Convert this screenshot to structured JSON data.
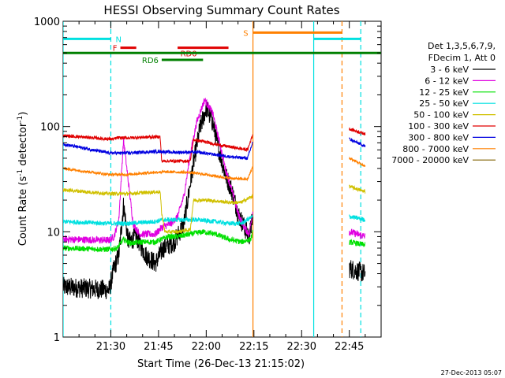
{
  "chart_data": {
    "type": "line",
    "title": "HESSI Observing Summary Count Rates",
    "xlabel": "Start Time (26-Dec-13 21:15:02)",
    "ylabel_main": "Count Rate (s",
    "ylabel_sup": "-1",
    "ylabel_rest": " detector",
    "ylabel_sup2": "-1",
    "ylabel_end": ")",
    "timestamp": "27-Dec-2013 05:07",
    "yscale": "log",
    "ylim": [
      1,
      1000
    ],
    "xlim_minutes": [
      0,
      100
    ],
    "x_tick_labels": [
      {
        "label": "21:30",
        "t": 15
      },
      {
        "label": "21:45",
        "t": 30
      },
      {
        "label": "22:00",
        "t": 45
      },
      {
        "label": "22:15",
        "t": 60
      },
      {
        "label": "22:30",
        "t": 75
      },
      {
        "label": "22:45",
        "t": 90
      }
    ],
    "y_tick_labels": [
      {
        "label": "1",
        "v": 1
      },
      {
        "label": "10",
        "v": 10
      },
      {
        "label": "100",
        "v": 100
      },
      {
        "label": "1000",
        "v": 1000
      }
    ],
    "legend": {
      "header1": "Det 1,3,5,6,7,9,",
      "header2": "FDecim 1, Att 0",
      "placement": "right",
      "entries": [
        {
          "label": "3 - 6 keV",
          "color": "#000000"
        },
        {
          "label": "6 - 12 keV",
          "color": "#e000e0"
        },
        {
          "label": "12 - 25 keV",
          "color": "#00e000"
        },
        {
          "label": "25 - 50 keV",
          "color": "#00e0e0"
        },
        {
          "label": "50 - 100 keV",
          "color": "#d0c000"
        },
        {
          "label": "100 - 300 keV",
          "color": "#e00000"
        },
        {
          "label": "300 - 800 keV",
          "color": "#0000e0"
        },
        {
          "label": "800 - 7000 keV",
          "color": "#ff8000"
        },
        {
          "label": "7000 - 20000 keV",
          "color": "#806000"
        }
      ]
    },
    "vertical_markers": [
      {
        "t": 0,
        "color": "#00e0e0",
        "style": "solid"
      },
      {
        "t": 15.0,
        "color": "#00e0e0",
        "style": "dashed"
      },
      {
        "t": 59.7,
        "color": "#ff8000",
        "style": "solid"
      },
      {
        "t": 78.8,
        "color": "#00e0e0",
        "style": "solid"
      },
      {
        "t": 87.7,
        "color": "#ff8000",
        "style": "dashed"
      },
      {
        "t": 93.6,
        "color": "#00e0e0",
        "style": "dashed"
      }
    ],
    "flag_bars": [
      {
        "label": "N",
        "color": "#00e0e0",
        "y": 680,
        "segments": [
          [
            0,
            15
          ],
          [
            78.8,
            93.6
          ]
        ]
      },
      {
        "label": "F",
        "color": "#e00000",
        "y": 560,
        "segments": [
          [
            18,
            23
          ]
        ]
      },
      {
        "label": "RD0",
        "color": "#e00000",
        "y": 560,
        "segments": [
          [
            36,
            52
          ]
        ]
      },
      {
        "label": "",
        "color": "#008000",
        "y": 500,
        "segments": [
          [
            0,
            100
          ]
        ]
      },
      {
        "label": "RD6",
        "color": "#008000",
        "y": 430,
        "segments": [
          [
            31,
            44
          ]
        ]
      },
      {
        "label": "S",
        "color": "#ff8000",
        "y": 780,
        "segments": [
          [
            59.7,
            87.7
          ]
        ]
      }
    ],
    "series": [
      {
        "name": "3 - 6 keV",
        "color": "#000000",
        "noise": 0.22,
        "segments": [
          {
            "points": [
              [
                0,
                3.0
              ],
              [
                14.5,
                2.8
              ],
              [
                16,
                4.5
              ],
              [
                17.5,
                6
              ],
              [
                19,
                18
              ],
              [
                20.5,
                8
              ],
              [
                23,
                9
              ],
              [
                26,
                6
              ],
              [
                29,
                5
              ],
              [
                31.5,
                7
              ],
              [
                35,
                8
              ],
              [
                38,
                12
              ],
              [
                41,
                45
              ],
              [
                43,
                95
              ],
              [
                45,
                150
              ],
              [
                47,
                110
              ],
              [
                49,
                60
              ],
              [
                51,
                35
              ],
              [
                53,
                25
              ],
              [
                55,
                15
              ],
              [
                57,
                11
              ],
              [
                58.5,
                9
              ],
              [
                59.7,
                14
              ]
            ]
          },
          {
            "points": [
              [
                90,
                4.5
              ],
              [
                95,
                4.0
              ]
            ]
          }
        ]
      },
      {
        "name": "6 - 12 keV",
        "color": "#e000e0",
        "noise": 0.08,
        "segments": [
          {
            "points": [
              [
                0,
                8.5
              ],
              [
                14.5,
                8.3
              ],
              [
                16,
                9
              ],
              [
                17.5,
                13
              ],
              [
                19,
                75
              ],
              [
                20.5,
                30
              ],
              [
                22,
                12
              ],
              [
                24,
                9.5
              ],
              [
                29,
                9.5
              ],
              [
                31,
                11
              ],
              [
                34,
                12
              ],
              [
                36,
                14
              ],
              [
                38,
                22
              ],
              [
                40,
                55
              ],
              [
                42,
                110
              ],
              [
                44.5,
                180
              ],
              [
                47,
                135
              ],
              [
                49,
                75
              ],
              [
                51,
                40
              ],
              [
                53,
                25
              ],
              [
                55,
                15
              ],
              [
                57,
                11
              ],
              [
                58.5,
                9.5
              ],
              [
                59.7,
                16
              ]
            ]
          },
          {
            "points": [
              [
                90,
                10
              ],
              [
                95,
                9
              ]
            ]
          }
        ]
      },
      {
        "name": "12 - 25 keV",
        "color": "#00e000",
        "noise": 0.06,
        "segments": [
          {
            "points": [
              [
                0,
                7.0
              ],
              [
                14.5,
                6.8
              ],
              [
                17,
                7
              ],
              [
                19,
                8.5
              ],
              [
                21,
                7.8
              ],
              [
                25,
                8
              ],
              [
                29,
                8
              ],
              [
                31,
                8.5
              ],
              [
                33,
                9
              ],
              [
                36,
                9
              ],
              [
                40,
                9.5
              ],
              [
                44,
                10
              ],
              [
                48,
                9.5
              ],
              [
                52,
                8.5
              ],
              [
                56,
                8
              ],
              [
                59,
                8.5
              ],
              [
                59.7,
                10
              ]
            ]
          },
          {
            "points": [
              [
                90,
                8
              ],
              [
                95,
                7.5
              ]
            ]
          }
        ]
      },
      {
        "name": "25 - 50 keV",
        "color": "#00e0e0",
        "noise": 0.05,
        "segments": [
          {
            "points": [
              [
                0,
                12.5
              ],
              [
                14.5,
                12
              ],
              [
                20,
                12
              ],
              [
                29,
                12.5
              ],
              [
                31,
                13
              ],
              [
                36,
                13
              ],
              [
                42,
                13
              ],
              [
                48,
                12.5
              ],
              [
                52,
                12
              ],
              [
                56,
                12
              ],
              [
                59.7,
                14
              ]
            ]
          },
          {
            "points": [
              [
                90,
                14
              ],
              [
                95,
                13
              ]
            ]
          }
        ]
      },
      {
        "name": "50 - 100 keV",
        "color": "#d0c000",
        "noise": 0.04,
        "segments": [
          {
            "points": [
              [
                0,
                25
              ],
              [
                14.5,
                23
              ],
              [
                20,
                23
              ],
              [
                25,
                23.5
              ],
              [
                30.5,
                24
              ],
              [
                31,
                15
              ],
              [
                32,
                10
              ],
              [
                36,
                10
              ],
              [
                40,
                10.5
              ],
              [
                41,
                20
              ],
              [
                45,
                20
              ],
              [
                49,
                19.5
              ],
              [
                52,
                19
              ],
              [
                56,
                19
              ],
              [
                59.7,
                22
              ]
            ]
          },
          {
            "points": [
              [
                90,
                27
              ],
              [
                95,
                24
              ]
            ]
          }
        ]
      },
      {
        "name": "100 - 300 keV",
        "color": "#e00000",
        "noise": 0.035,
        "segments": [
          {
            "points": [
              [
                0,
                82
              ],
              [
                14.5,
                76
              ],
              [
                16,
                76
              ],
              [
                17,
                78
              ],
              [
                20,
                78
              ],
              [
                25,
                79
              ],
              [
                30.5,
                80
              ],
              [
                31,
                47
              ],
              [
                40,
                47
              ],
              [
                41,
                75
              ],
              [
                46,
                70
              ],
              [
                50,
                66
              ],
              [
                54,
                63
              ],
              [
                58,
                60
              ],
              [
                59.7,
                85
              ]
            ]
          },
          {
            "points": [
              [
                90,
                95
              ],
              [
                95,
                85
              ]
            ]
          }
        ]
      },
      {
        "name": "300 - 800 keV",
        "color": "#0000e0",
        "noise": 0.035,
        "segments": [
          {
            "points": [
              [
                0,
                68
              ],
              [
                14.5,
                56
              ],
              [
                20,
                56
              ],
              [
                25,
                57
              ],
              [
                30.5,
                58
              ],
              [
                34,
                57
              ],
              [
                38,
                57
              ],
              [
                42,
                57
              ],
              [
                46,
                55
              ],
              [
                50,
                53
              ],
              [
                54,
                51
              ],
              [
                58,
                50
              ],
              [
                59.7,
                72
              ]
            ]
          },
          {
            "points": [
              [
                90,
                76
              ],
              [
                95,
                65
              ]
            ]
          }
        ]
      },
      {
        "name": "800 - 7000 keV",
        "color": "#ff8000",
        "noise": 0.03,
        "segments": [
          {
            "points": [
              [
                0,
                40
              ],
              [
                14.5,
                35
              ],
              [
                20,
                35
              ],
              [
                25,
                36
              ],
              [
                30.5,
                37
              ],
              [
                35,
                37
              ],
              [
                40,
                36.5
              ],
              [
                45,
                35
              ],
              [
                50,
                33
              ],
              [
                54,
                32
              ],
              [
                58,
                31.5
              ],
              [
                59.7,
                42
              ]
            ]
          },
          {
            "points": [
              [
                90,
                50
              ],
              [
                95,
                42
              ]
            ]
          }
        ]
      },
      {
        "name": "7000 - 20000 keV",
        "color": "#806000",
        "noise": 0.0,
        "segments": []
      }
    ]
  }
}
